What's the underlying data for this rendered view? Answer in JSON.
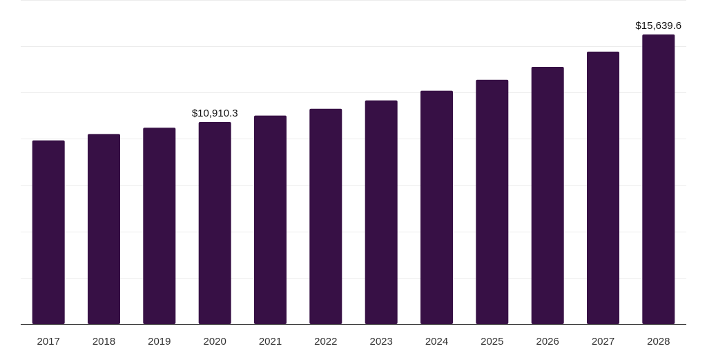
{
  "chart_data": {
    "type": "bar",
    "categories": [
      "2017",
      "2018",
      "2019",
      "2020",
      "2021",
      "2022",
      "2023",
      "2024",
      "2025",
      "2026",
      "2027",
      "2028"
    ],
    "values": [
      9920,
      10260,
      10600,
      10910.3,
      11260,
      11630,
      12080,
      12600,
      13190,
      13890,
      14710,
      15639.6
    ],
    "data_labels": [
      {
        "category": "2020",
        "text": "$10,910.3"
      },
      {
        "category": "2028",
        "text": "$15,639.6"
      }
    ],
    "title": "",
    "xlabel": "",
    "ylabel": "",
    "ylim": [
      0,
      17500
    ],
    "grid": true,
    "legend": "none",
    "bar_color": "#371045",
    "grid_color": "#ececec",
    "axis_color": "#333333"
  }
}
